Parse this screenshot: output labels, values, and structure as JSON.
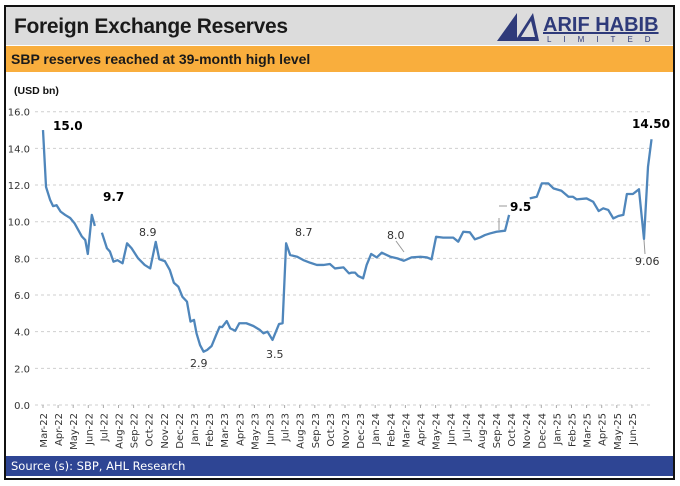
{
  "header": {
    "title": "Foreign Exchange Reserves",
    "logo_text": "ARIF HABIB",
    "logo_subtext": "LIMITED"
  },
  "subtitle": "SBP reserves reached at 39-month high level",
  "footer": {
    "source": "Source (s): SBP, AHL Research"
  },
  "colors": {
    "line": "#4f86bb",
    "header_bg": "#dcdcdc",
    "subtitle_bg": "#f9ae3d",
    "footer_bg": "#2e4594",
    "logo": "#2e3a7a"
  },
  "chart_data": {
    "type": "line",
    "title": "",
    "ylabel": "(USD bn)",
    "xlabel": "",
    "ylim": [
      0,
      16
    ],
    "yticks": [
      "0.0",
      "2.0",
      "4.0",
      "6.0",
      "8.0",
      "10.0",
      "12.0",
      "14.0",
      "16.0"
    ],
    "xlim": [
      "2022-03-01",
      "2025-07-10"
    ],
    "xticks": [
      "Mar-22",
      "Apr-22",
      "May-22",
      "Jun-22",
      "Jul-22",
      "Aug-22",
      "Sep-22",
      "Oct-22",
      "Nov-22",
      "Dec-22",
      "Jan-23",
      "Feb-23",
      "Mar-23",
      "Apr-23",
      "May-23",
      "Jun-23",
      "Jul-23",
      "Aug-23",
      "Sep-23",
      "Oct-23",
      "Nov-23",
      "Dec-23",
      "Jan-24",
      "Feb-24",
      "Mar-24",
      "Apr-24",
      "May-24",
      "Jun-24",
      "Jul-24",
      "Aug-24",
      "Sep-24",
      "Oct-24",
      "Nov-24",
      "Dec-24",
      "Jan-25",
      "Feb-25",
      "Mar-25",
      "Apr-25",
      "May-25",
      "Jun-25"
    ],
    "grid": true,
    "legend": "none",
    "series": [
      {
        "points": [
          [
            "2022-03-01",
            15.0
          ],
          [
            "2022-03-07",
            11.9
          ],
          [
            "2022-03-15",
            11.2
          ],
          [
            "2022-03-21",
            10.85
          ],
          [
            "2022-03-28",
            10.9
          ],
          [
            "2022-04-06",
            10.55
          ],
          [
            "2022-04-15",
            10.37
          ],
          [
            "2022-04-25",
            10.2
          ],
          [
            "2022-05-04",
            9.9
          ],
          [
            "2022-05-18",
            9.2
          ],
          [
            "2022-05-25",
            9.0
          ],
          [
            "2022-05-30",
            8.24
          ],
          [
            "2022-06-08",
            10.37
          ],
          [
            "2022-06-14",
            9.77
          ],
          [
            "2022-06-21",
            null
          ],
          [
            "2022-06-28",
            9.4
          ],
          [
            "2022-07-08",
            8.55
          ],
          [
            "2022-07-14",
            8.37
          ],
          [
            "2022-07-21",
            7.82
          ],
          [
            "2022-07-29",
            7.9
          ],
          [
            "2022-08-09",
            7.73
          ],
          [
            "2022-08-18",
            8.82
          ],
          [
            "2022-08-27",
            8.55
          ],
          [
            "2022-09-10",
            8.0
          ],
          [
            "2022-09-23",
            7.64
          ],
          [
            "2022-10-04",
            7.45
          ],
          [
            "2022-10-15",
            8.9
          ],
          [
            "2022-10-22",
            7.95
          ],
          [
            "2022-11-03",
            7.85
          ],
          [
            "2022-11-13",
            7.36
          ],
          [
            "2022-11-21",
            6.67
          ],
          [
            "2022-11-30",
            6.45
          ],
          [
            "2022-12-08",
            5.9
          ],
          [
            "2022-12-17",
            5.64
          ],
          [
            "2022-12-24",
            4.55
          ],
          [
            "2022-12-31",
            4.64
          ],
          [
            "2023-01-06",
            3.91
          ],
          [
            "2023-01-13",
            3.27
          ],
          [
            "2023-01-20",
            2.91
          ],
          [
            "2023-01-27",
            3.0
          ],
          [
            "2023-02-06",
            3.22
          ],
          [
            "2023-02-15",
            3.82
          ],
          [
            "2023-02-22",
            4.27
          ],
          [
            "2023-02-27",
            4.25
          ],
          [
            "2023-03-06",
            4.58
          ],
          [
            "2023-03-13",
            4.18
          ],
          [
            "2023-03-23",
            4.05
          ],
          [
            "2023-04-01",
            4.46
          ],
          [
            "2023-04-15",
            4.46
          ],
          [
            "2023-04-29",
            4.31
          ],
          [
            "2023-05-12",
            4.09
          ],
          [
            "2023-05-19",
            3.91
          ],
          [
            "2023-05-27",
            4.0
          ],
          [
            "2023-06-07",
            3.55
          ],
          [
            "2023-06-15",
            4.09
          ],
          [
            "2023-06-20",
            4.42
          ],
          [
            "2023-06-27",
            4.46
          ],
          [
            "2023-07-04",
            8.82
          ],
          [
            "2023-07-12",
            8.18
          ],
          [
            "2023-07-26",
            8.09
          ],
          [
            "2023-08-08",
            7.91
          ],
          [
            "2023-08-22",
            7.76
          ],
          [
            "2023-09-05",
            7.64
          ],
          [
            "2023-09-18",
            7.64
          ],
          [
            "2023-10-01",
            7.69
          ],
          [
            "2023-10-11",
            7.45
          ],
          [
            "2023-10-28",
            7.51
          ],
          [
            "2023-11-09",
            7.18
          ],
          [
            "2023-11-14",
            7.22
          ],
          [
            "2023-11-21",
            7.22
          ],
          [
            "2023-11-27",
            7.04
          ],
          [
            "2023-12-07",
            6.91
          ],
          [
            "2023-12-14",
            7.64
          ],
          [
            "2023-12-23",
            8.24
          ],
          [
            "2024-01-04",
            8.05
          ],
          [
            "2024-01-14",
            8.31
          ],
          [
            "2024-01-31",
            8.09
          ],
          [
            "2024-02-15",
            8.0
          ],
          [
            "2024-02-28",
            7.87
          ],
          [
            "2024-03-13",
            8.05
          ],
          [
            "2024-03-31",
            8.09
          ],
          [
            "2024-04-14",
            8.05
          ],
          [
            "2024-04-23",
            7.95
          ],
          [
            "2024-05-02",
            9.18
          ],
          [
            "2024-05-16",
            9.13
          ],
          [
            "2024-06-06",
            9.13
          ],
          [
            "2024-06-16",
            8.91
          ],
          [
            "2024-06-26",
            9.45
          ],
          [
            "2024-07-09",
            9.42
          ],
          [
            "2024-07-19",
            9.04
          ],
          [
            "2024-07-30",
            9.15
          ],
          [
            "2024-08-09",
            9.27
          ],
          [
            "2024-08-19",
            9.36
          ],
          [
            "2024-09-02",
            9.45
          ],
          [
            "2024-09-19",
            9.51
          ],
          [
            "2024-09-27",
            10.37
          ],
          [
            "2024-10-15",
            null
          ],
          [
            "2024-11-08",
            11.27
          ],
          [
            "2024-11-22",
            11.36
          ],
          [
            "2024-12-02",
            12.09
          ],
          [
            "2024-12-15",
            12.09
          ],
          [
            "2024-12-25",
            11.82
          ],
          [
            "2025-01-11",
            11.69
          ],
          [
            "2025-01-25",
            11.36
          ],
          [
            "2025-02-04",
            11.36
          ],
          [
            "2025-02-11",
            11.22
          ],
          [
            "2025-03-01",
            11.27
          ],
          [
            "2025-03-14",
            11.09
          ],
          [
            "2025-03-25",
            10.58
          ],
          [
            "2025-04-04",
            10.73
          ],
          [
            "2025-04-14",
            10.64
          ],
          [
            "2025-04-24",
            10.18
          ],
          [
            "2025-05-04",
            10.31
          ],
          [
            "2025-05-14",
            10.37
          ],
          [
            "2025-05-21",
            11.51
          ],
          [
            "2025-06-03",
            11.51
          ],
          [
            "2025-06-15",
            11.77
          ],
          [
            "2025-06-25",
            9.06
          ],
          [
            "2025-07-03",
            13.0
          ],
          [
            "2025-07-10",
            14.5
          ]
        ]
      }
    ],
    "annotations": [
      {
        "text": "15.0",
        "bold": true
      },
      {
        "text": "9.7",
        "bold": true
      },
      {
        "text": "8.9",
        "bold": false
      },
      {
        "text": "2.9",
        "bold": false
      },
      {
        "text": "3.5",
        "bold": false
      },
      {
        "text": "8.7",
        "bold": false
      },
      {
        "text": "8.0",
        "bold": false
      },
      {
        "text": "9.5",
        "bold": true
      },
      {
        "text": "14.50",
        "bold": true
      },
      {
        "text": "9.06",
        "bold": false
      }
    ]
  }
}
